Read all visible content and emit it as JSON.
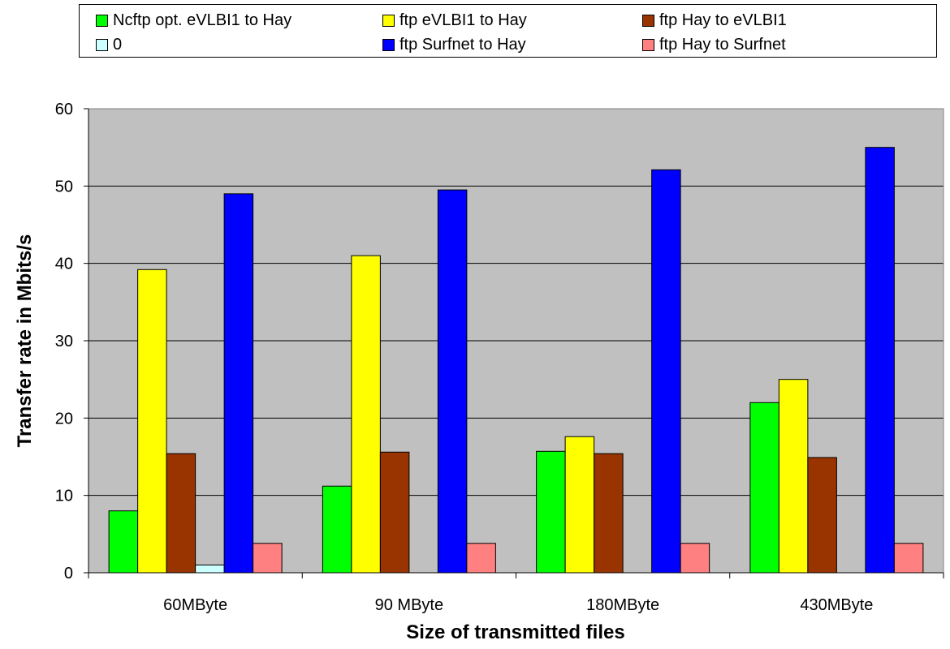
{
  "chart_data": {
    "type": "bar",
    "title": "",
    "xlabel": "Size of transmitted files",
    "ylabel": "Transfer rate in Mbits/s",
    "ylim": [
      0,
      60
    ],
    "yticks": [
      "0",
      "10",
      "20",
      "30",
      "40",
      "50",
      "60"
    ],
    "categories": [
      "60MByte",
      "90 MByte",
      "180MByte",
      "430MByte"
    ],
    "series": [
      {
        "name": "Ncftp opt. eVLBI1 to Hay",
        "color": "#00ff00",
        "values": [
          8,
          11.2,
          15.7,
          22
        ]
      },
      {
        "name": "ftp eVLBI1 to Hay",
        "color": "#ffff00",
        "values": [
          39.2,
          41,
          17.6,
          25
        ]
      },
      {
        "name": "ftp Hay to eVLBI1",
        "color": "#993300",
        "values": [
          15.4,
          15.6,
          15.4,
          14.9
        ]
      },
      {
        "name": "0",
        "color": "#ccffff",
        "values": [
          1,
          null,
          null,
          null
        ]
      },
      {
        "name": "ftp Surfnet to Hay",
        "color": "#0000ff",
        "values": [
          49,
          49.5,
          52.1,
          55
        ]
      },
      {
        "name": "ftp  Hay to Surfnet",
        "color": "#ff8080",
        "values": [
          3.8,
          3.8,
          3.8,
          3.8
        ]
      }
    ],
    "plot_background": "#c0c0c0",
    "grid": true,
    "legend_position": "top"
  }
}
